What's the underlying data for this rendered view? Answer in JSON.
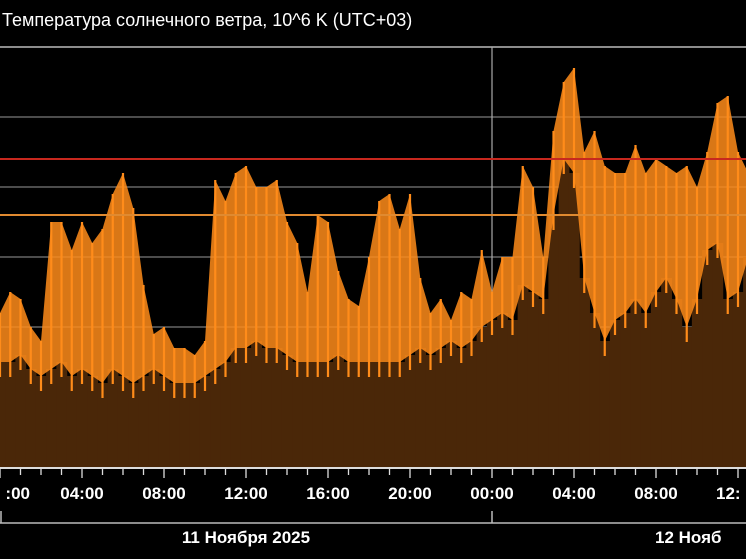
{
  "chart_data": {
    "type": "area",
    "title": "Температура солнечного ветра, 10^6 K (UTC+03)",
    "xlabel": "",
    "ylabel": "",
    "ylim": [
      0,
      0.6
    ],
    "y_gridlines": [
      0.1,
      0.2,
      0.3,
      0.4,
      0.5
    ],
    "y_tick_labels_shown": false,
    "grid": true,
    "reference_lines": [
      {
        "value": 0.44,
        "color": "#c8281e"
      },
      {
        "value": 0.36,
        "color": "#e08a30"
      }
    ],
    "x_hours_from_start": [
      0,
      0.5,
      1,
      1.5,
      2,
      2.5,
      3,
      3.5,
      4,
      4.5,
      5,
      5.5,
      6,
      6.5,
      7,
      7.5,
      8,
      8.5,
      9,
      9.5,
      10,
      10.5,
      11,
      11.5,
      12,
      12.5,
      13,
      13.5,
      14,
      14.5,
      15,
      15.5,
      16,
      16.5,
      17,
      17.5,
      18,
      18.5,
      19,
      19.5,
      20,
      20.5,
      21,
      21.5,
      22,
      22.5,
      23,
      23.5,
      24,
      24.5,
      25,
      25.5,
      26,
      26.5,
      27,
      27.5,
      28,
      28.5,
      29,
      29.5,
      30,
      30.5,
      31,
      31.5,
      32,
      32.5,
      33,
      33.5,
      34,
      34.5,
      35,
      35.5,
      36,
      36.5
    ],
    "x_start": "11 Ноября 2025 00:00",
    "x_tick_labels": [
      ":00",
      "04:00",
      "08:00",
      "12:00",
      "16:00",
      "20:00",
      "00:00",
      "04:00",
      "08:00",
      "12:"
    ],
    "x_tick_hours": [
      0,
      4,
      8,
      12,
      16,
      20,
      24,
      28,
      32,
      36
    ],
    "date_labels": [
      {
        "label": "11 Ноября 2025",
        "center_hour": 12
      },
      {
        "label": "12 Нояб",
        "center_hour": 34
      }
    ],
    "series": [
      {
        "key": "low",
        "values": [
          0.15,
          0.15,
          0.16,
          0.14,
          0.13,
          0.14,
          0.15,
          0.13,
          0.14,
          0.13,
          0.12,
          0.14,
          0.13,
          0.12,
          0.13,
          0.14,
          0.13,
          0.12,
          0.12,
          0.12,
          0.13,
          0.14,
          0.15,
          0.17,
          0.17,
          0.18,
          0.17,
          0.17,
          0.16,
          0.15,
          0.15,
          0.15,
          0.15,
          0.16,
          0.15,
          0.15,
          0.15,
          0.15,
          0.15,
          0.15,
          0.16,
          0.17,
          0.16,
          0.17,
          0.18,
          0.17,
          0.18,
          0.2,
          0.21,
          0.22,
          0.21,
          0.26,
          0.25,
          0.24,
          0.36,
          0.44,
          0.42,
          0.27,
          0.22,
          0.18,
          0.21,
          0.22,
          0.24,
          0.22,
          0.25,
          0.27,
          0.24,
          0.2,
          0.24,
          0.31,
          0.32,
          0.24,
          0.25,
          0.3
        ]
      },
      {
        "key": "high",
        "values": [
          0.22,
          0.25,
          0.24,
          0.2,
          0.18,
          0.35,
          0.35,
          0.31,
          0.35,
          0.32,
          0.34,
          0.39,
          0.42,
          0.37,
          0.26,
          0.19,
          0.2,
          0.17,
          0.17,
          0.16,
          0.18,
          0.41,
          0.38,
          0.42,
          0.43,
          0.4,
          0.4,
          0.41,
          0.35,
          0.32,
          0.25,
          0.36,
          0.35,
          0.28,
          0.24,
          0.23,
          0.3,
          0.38,
          0.39,
          0.34,
          0.39,
          0.27,
          0.22,
          0.24,
          0.21,
          0.25,
          0.24,
          0.31,
          0.25,
          0.3,
          0.3,
          0.43,
          0.4,
          0.3,
          0.48,
          0.55,
          0.57,
          0.45,
          0.48,
          0.43,
          0.42,
          0.42,
          0.46,
          0.42,
          0.44,
          0.43,
          0.42,
          0.43,
          0.4,
          0.45,
          0.52,
          0.53,
          0.45,
          0.42
        ]
      }
    ],
    "colors": {
      "line": "#ff8c1a",
      "fill": "#4a2708",
      "background": "#000000",
      "grid": "#7a7a7a"
    }
  }
}
